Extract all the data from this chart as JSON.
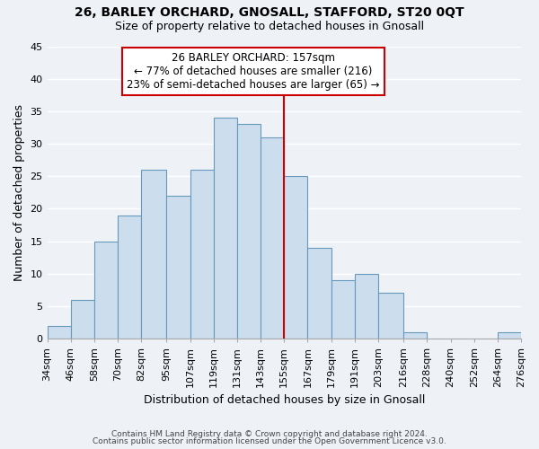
{
  "title": "26, BARLEY ORCHARD, GNOSALL, STAFFORD, ST20 0QT",
  "subtitle": "Size of property relative to detached houses in Gnosall",
  "xlabel": "Distribution of detached houses by size in Gnosall",
  "ylabel": "Number of detached properties",
  "footer_line1": "Contains HM Land Registry data © Crown copyright and database right 2024.",
  "footer_line2": "Contains public sector information licensed under the Open Government Licence v3.0.",
  "bin_labels": [
    "34sqm",
    "46sqm",
    "58sqm",
    "70sqm",
    "82sqm",
    "95sqm",
    "107sqm",
    "119sqm",
    "131sqm",
    "143sqm",
    "155sqm",
    "167sqm",
    "179sqm",
    "191sqm",
    "203sqm",
    "216sqm",
    "228sqm",
    "240sqm",
    "252sqm",
    "264sqm",
    "276sqm"
  ],
  "bin_edges": [
    34,
    46,
    58,
    70,
    82,
    95,
    107,
    119,
    131,
    143,
    155,
    167,
    179,
    191,
    203,
    216,
    228,
    240,
    252,
    264,
    276
  ],
  "counts": [
    2,
    6,
    15,
    19,
    26,
    22,
    26,
    34,
    33,
    31,
    25,
    14,
    9,
    10,
    7,
    1,
    0,
    0,
    0,
    1
  ],
  "bar_color": "#ccdded",
  "bar_edgecolor": "#6699bb",
  "vline_x": 155,
  "vline_color": "#cc0000",
  "annotation_title": "26 BARLEY ORCHARD: 157sqm",
  "annotation_line1": "← 77% of detached houses are smaller (216)",
  "annotation_line2": "23% of semi-detached houses are larger (65) →",
  "annotation_box_facecolor": "white",
  "annotation_box_edgecolor": "#cc0000",
  "ylim": [
    0,
    45
  ],
  "yticks": [
    0,
    5,
    10,
    15,
    20,
    25,
    30,
    35,
    40,
    45
  ],
  "background_color": "#eef2f7",
  "grid_color": "#ffffff",
  "title_fontsize": 10,
  "subtitle_fontsize": 9,
  "xlabel_fontsize": 9,
  "ylabel_fontsize": 9,
  "tick_fontsize": 8,
  "footer_fontsize": 6.5,
  "footer_color": "#444444"
}
